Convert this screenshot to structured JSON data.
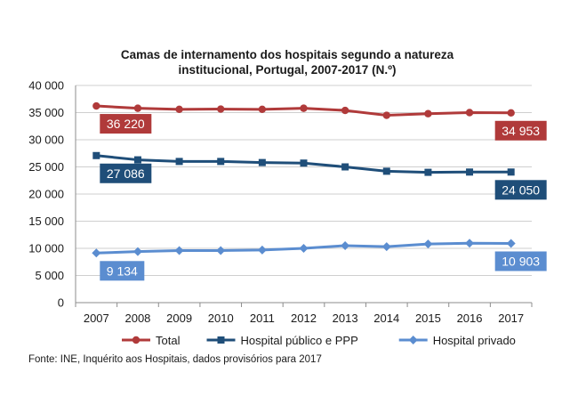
{
  "chart_data": {
    "type": "line",
    "title_lines": [
      "Camas de internamento dos hospitais segundo a natureza",
      "institucional, Portugal, 2007-2017 (N.º)"
    ],
    "categories": [
      "2007",
      "2008",
      "2009",
      "2010",
      "2011",
      "2012",
      "2013",
      "2014",
      "2015",
      "2016",
      "2017"
    ],
    "ylim": [
      0,
      40000
    ],
    "yticks": [
      0,
      5000,
      10000,
      15000,
      20000,
      25000,
      30000,
      35000,
      40000
    ],
    "ytick_labels": [
      "0",
      "5 000",
      "10 000",
      "15 000",
      "20 000",
      "25 000",
      "30 000",
      "35 000",
      "40 000"
    ],
    "grid": true,
    "legend_position": "bottom",
    "series": [
      {
        "name": "Total",
        "marker": "circle",
        "color": "#B03A3A",
        "values": [
          36220,
          35800,
          35600,
          35650,
          35600,
          35800,
          35400,
          34500,
          34800,
          35000,
          34953
        ],
        "first_label": "36 220",
        "last_label": "34 953"
      },
      {
        "name": "Hospital público e PPP",
        "marker": "square",
        "color": "#1F4E79",
        "values": [
          27086,
          26300,
          26000,
          26000,
          25800,
          25700,
          25000,
          24200,
          24000,
          24050,
          24050
        ],
        "first_label": "27 086",
        "last_label": "24 050"
      },
      {
        "name": "Hospital privado",
        "marker": "diamond",
        "color": "#5B8DD0",
        "values": [
          9134,
          9400,
          9600,
          9600,
          9700,
          10000,
          10500,
          10300,
          10800,
          10950,
          10903
        ],
        "first_label": "9 134",
        "last_label": "10 903"
      }
    ]
  },
  "source": "Fonte: INE, Inquérito aos Hospitais, dados provisórios para 2017"
}
